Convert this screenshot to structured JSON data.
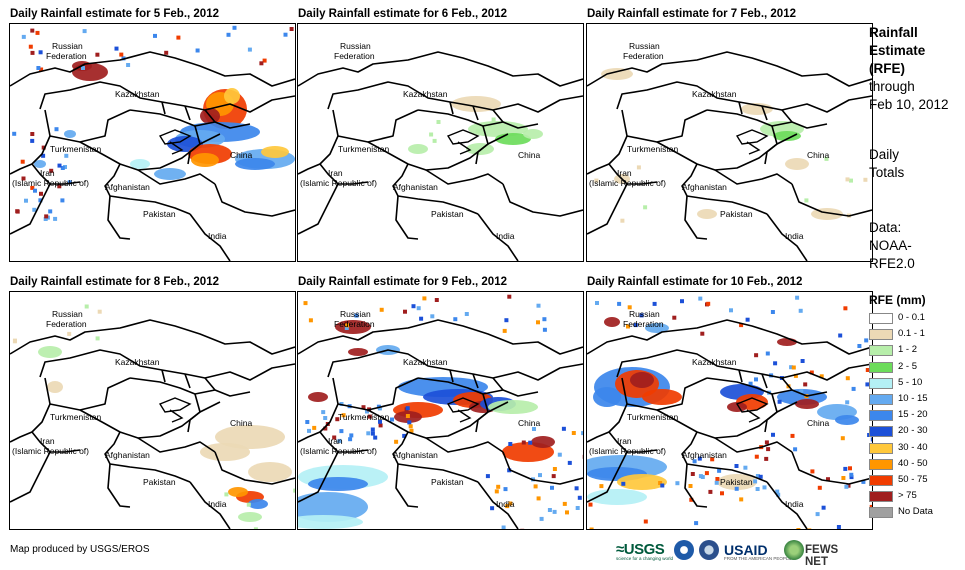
{
  "panels": [
    {
      "title": "Daily Rainfall estimate for 5 Feb., 2012"
    },
    {
      "title": "Daily Rainfall estimate for 6 Feb., 2012"
    },
    {
      "title": "Daily Rainfall estimate for 7 Feb., 2012"
    },
    {
      "title": "Daily Rainfall estimate for 8 Feb., 2012"
    },
    {
      "title": "Daily Rainfall estimate for 9 Feb., 2012"
    },
    {
      "title": "Daily Rainfall estimate for 10 Feb., 2012"
    }
  ],
  "map_labels": {
    "russia_1": "Russian",
    "russia_2": "Federation",
    "kazakhstan": "Kazakhstan",
    "turkmenistan": "Turkmenistan",
    "iran_1": "Iran",
    "iran_2": "(Islamic Republic of)",
    "afghanistan": "Afghanistan",
    "pakistan": "Pakistan",
    "china": "China",
    "india": "India"
  },
  "sidebar": {
    "heading_1": "Rainfall",
    "heading_2": "Estimate",
    "heading_3": "(RFE)",
    "through_1": "through",
    "through_2": "Feb 10, 2012",
    "daily_1": "Daily",
    "daily_2": "Totals",
    "data_1": "Data:",
    "data_2": "NOAA-",
    "data_3": "RFE2.0"
  },
  "legend": {
    "title": "RFE (mm)",
    "items": [
      {
        "label": "0 - 0.1",
        "color": "#ffffff"
      },
      {
        "label": "0.1 - 1",
        "color": "#ecd9b5"
      },
      {
        "label": "1 - 2",
        "color": "#b7eeaa"
      },
      {
        "label": "2 - 5",
        "color": "#6cdc5b"
      },
      {
        "label": "5 - 10",
        "color": "#b4f0f5"
      },
      {
        "label": "10 - 15",
        "color": "#64aaf0"
      },
      {
        "label": "15 - 20",
        "color": "#3c87ec"
      },
      {
        "label": "20 - 30",
        "color": "#1c50d8"
      },
      {
        "label": "30 - 40",
        "color": "#ffc83c"
      },
      {
        "label": "40 - 50",
        "color": "#ff9600"
      },
      {
        "label": "50 - 75",
        "color": "#f03c00"
      },
      {
        "label": "> 75",
        "color": "#a01e1e"
      },
      {
        "label": "No Data",
        "color": "#a0a0a0"
      }
    ]
  },
  "footer": {
    "credit": "Map produced by USGS/EROS",
    "logo_usgs": "≈USGS",
    "logo_usgs_sub": "science for a changing world",
    "logo_usaid": "USAID",
    "logo_usaid_sub": "FROM THE AMERICAN PEOPLE",
    "logo_fews": "FEWS NET"
  }
}
